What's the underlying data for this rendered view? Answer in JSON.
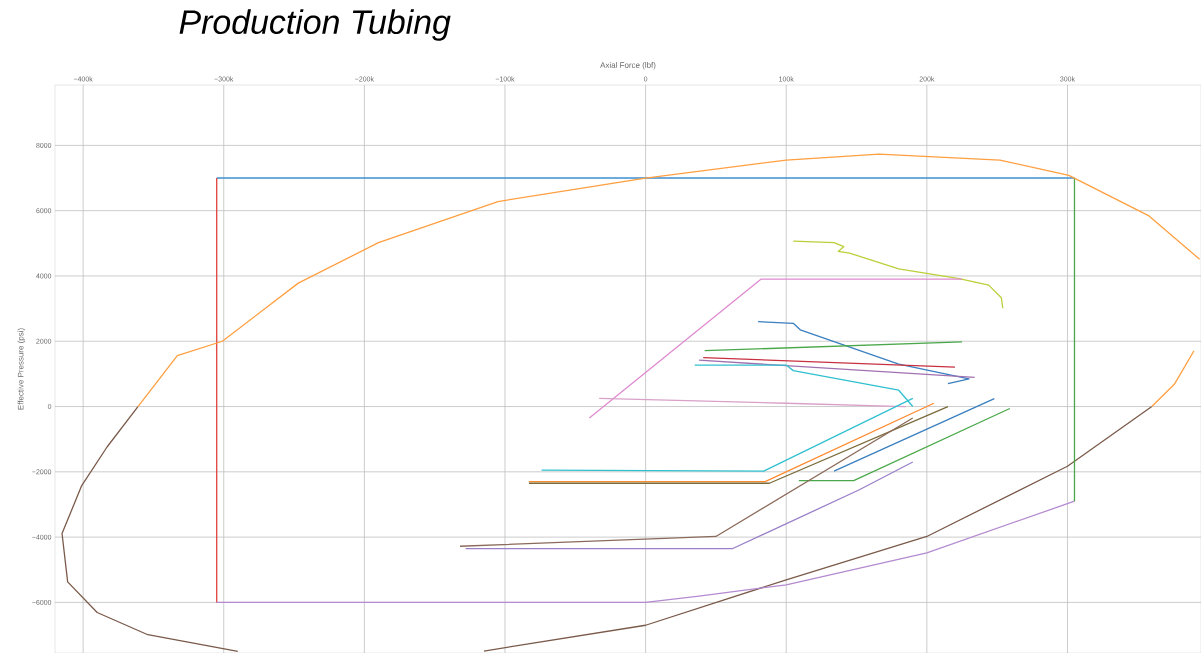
{
  "chart_data": {
    "type": "line",
    "title": "Production Tubing",
    "xlabel": "Axial Force (lbf)",
    "ylabel": "Effective Pressure (psi)",
    "xlim": [
      -420000,
      395000
    ],
    "ylim": [
      -7550,
      9850
    ],
    "xticks": [
      {
        "value": -400000,
        "label": "−400k"
      },
      {
        "value": -300000,
        "label": "−300k"
      },
      {
        "value": -200000,
        "label": "−200k"
      },
      {
        "value": -100000,
        "label": "−100k"
      },
      0,
      {
        "value": 100000,
        "label": "100k"
      },
      {
        "value": 200000,
        "label": "200k"
      },
      {
        "value": 300000,
        "label": "300k"
      }
    ],
    "yticks": [
      {
        "value": -6000,
        "label": "−6000"
      },
      {
        "value": -4000,
        "label": "−4000"
      },
      {
        "value": -2000,
        "label": "−2000"
      },
      0,
      2000,
      4000,
      6000,
      8000
    ],
    "grid": true,
    "series": [
      {
        "color": "#ff9f40",
        "x": [
          -361000,
          -333000,
          -301000,
          -247000,
          -190000,
          -105000,
          0,
          100000,
          166000,
          252000,
          301000,
          358000,
          394000,
          null,
          390000,
          376000,
          360000
        ],
        "values": [
          0,
          1560,
          2000,
          3780,
          5020,
          6280,
          7000,
          7550,
          7730,
          7550,
          7080,
          5840,
          4510,
          null,
          1710,
          680,
          0
        ]
      },
      {
        "color": "#7a5a4a",
        "x": [
          -361000,
          -383000,
          -401000,
          -415000,
          -411000,
          -390000,
          -354000,
          -290000,
          null,
          -115000,
          0,
          100000,
          200000,
          300000,
          360000
        ],
        "values": [
          0,
          -1240,
          -2420,
          -3890,
          -5370,
          -6310,
          -6990,
          -7500,
          null,
          -7490,
          -6700,
          -5310,
          -3980,
          -1830,
          0
        ]
      },
      {
        "color": "#3d8fd0",
        "x": [
          -305000,
          305000
        ],
        "values": [
          7000,
          7000
        ]
      },
      {
        "color": "#e0413b",
        "x": [
          -305000,
          -305000
        ],
        "values": [
          7000,
          -6000
        ]
      },
      {
        "color": "#b48ad0",
        "x": [
          -305000,
          0,
          38000,
          100000,
          200000,
          305000
        ],
        "values": [
          -6000,
          -6000,
          -5810,
          -5460,
          -4480,
          -2900
        ]
      },
      {
        "color": "#4aa84a",
        "x": [
          305000,
          305000
        ],
        "values": [
          7000,
          -2900
        ]
      },
      {
        "color": "#bccf3a",
        "x": [
          105000,
          134000,
          141000,
          137000,
          145000,
          180000,
          223000,
          244000,
          253000,
          254000
        ],
        "values": [
          5070,
          5020,
          4900,
          4750,
          4700,
          4220,
          3920,
          3720,
          3330,
          3010
        ]
      },
      {
        "color": "#e08ad0",
        "x": [
          -40000,
          82000,
          225000
        ],
        "values": [
          -350,
          3900,
          3900
        ]
      },
      {
        "color": "#d9a0c8",
        "x": [
          -33000,
          100000,
          185000
        ],
        "values": [
          250,
          100,
          0
        ]
      },
      {
        "color": "#3a7fc0",
        "x": [
          80000,
          105000,
          110000,
          180000,
          230000,
          215000
        ],
        "values": [
          2600,
          2550,
          2350,
          1300,
          850,
          700
        ]
      },
      {
        "color": "#4aa84a",
        "x": [
          42000,
          225000
        ],
        "values": [
          1710,
          1980
        ]
      },
      {
        "color": "#c83040",
        "x": [
          41000,
          220000
        ],
        "values": [
          1500,
          1210
        ]
      },
      {
        "color": "#a070b0",
        "x": [
          38000,
          234000
        ],
        "values": [
          1420,
          890
        ]
      },
      {
        "color": "#30c0d0",
        "x": [
          35000,
          100000,
          105000,
          180000,
          190000
        ],
        "values": [
          1270,
          1270,
          1100,
          500,
          0
        ]
      },
      {
        "color": "#30c0d0",
        "x": [
          -74000,
          84000,
          190000
        ],
        "values": [
          -1950,
          -1980,
          250
        ]
      },
      {
        "color": "#ff8a30",
        "x": [
          -83000,
          85000,
          205000
        ],
        "values": [
          -2300,
          -2300,
          100
        ]
      },
      {
        "color": "#7a6a3a",
        "x": [
          -83000,
          88000,
          215000
        ],
        "values": [
          -2350,
          -2350,
          0
        ]
      },
      {
        "color": "#4aa84a",
        "x": [
          109000,
          148000,
          259000
        ],
        "values": [
          -2270,
          -2270,
          -60
        ]
      },
      {
        "color": "#3a7fc0",
        "x": [
          134000,
          248000
        ],
        "values": [
          -1980,
          240
        ]
      },
      {
        "color": "#8a6a5a",
        "x": [
          -132000,
          50000,
          190000
        ],
        "values": [
          -4280,
          -3980,
          -350
        ]
      },
      {
        "color": "#9a80c8",
        "x": [
          -128000,
          62000,
          152000,
          190000
        ],
        "values": [
          -4350,
          -4350,
          -2550,
          -1700
        ]
      }
    ]
  }
}
